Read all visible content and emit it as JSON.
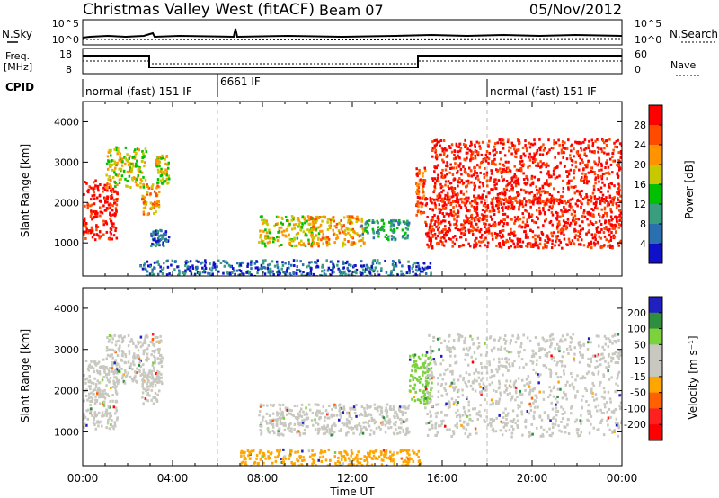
{
  "header": {
    "site": "Christmas Valley West (fitACF)",
    "beam": "Beam 07",
    "date": "05/Nov/2012"
  },
  "strips": {
    "nsky_label": "N.Sky",
    "nsearch_label": "N.Search",
    "noise_ticks_left": [
      "10^5",
      "10^0"
    ],
    "noise_ticks_right": [
      "10^5",
      "10^0"
    ],
    "freq_label_1": "Freq.",
    "freq_label_2": "[MHz]",
    "freq_ticks": [
      "18",
      "8"
    ],
    "nave_label": "Nave",
    "nave_ticks": [
      "60",
      "0"
    ],
    "cpid_label": "CPID",
    "cpid_segments": [
      "normal (fast) 151 IF",
      "6661 IF",
      "normal (fast) 151 IF"
    ]
  },
  "chart_data": [
    {
      "type": "heatmap",
      "panel": "power",
      "ylabel": "Slant Range [km]",
      "xlabel": "",
      "x_ticks": [
        "00:00",
        "04:00",
        "08:00",
        "12:00",
        "16:00",
        "20:00",
        "00:00"
      ],
      "y_ticks": [
        "1000",
        "2000",
        "3000",
        "4000"
      ],
      "xlim_hours": [
        0,
        24
      ],
      "ylim_km": [
        180,
        4500
      ],
      "colorbar_label": "Power [dB]",
      "colorbar_ticks": [
        "28",
        "24",
        "20",
        "16",
        "12",
        "8",
        "4"
      ],
      "colorbar_colors": [
        "#ff0000",
        "#ff4a00",
        "#ff9400",
        "#c8c800",
        "#00c000",
        "#3a9e7e",
        "#2a6fb0",
        "#1010c8"
      ],
      "regions": [
        {
          "x": [
            0.0,
            1.5
          ],
          "y": [
            1100,
            2600
          ],
          "level": 0
        },
        {
          "x": [
            1.0,
            2.8
          ],
          "y": [
            2400,
            3400
          ],
          "level": 3
        },
        {
          "x": [
            2.6,
            3.4
          ],
          "y": [
            1700,
            2500
          ],
          "level": 2
        },
        {
          "x": [
            3.2,
            3.8
          ],
          "y": [
            2500,
            3200
          ],
          "level": 3
        },
        {
          "x": [
            3.0,
            3.8
          ],
          "y": [
            950,
            1350
          ],
          "level": 6
        },
        {
          "x": [
            7.8,
            10.5
          ],
          "y": [
            950,
            1700
          ],
          "level": 3
        },
        {
          "x": [
            10.0,
            12.5
          ],
          "y": [
            950,
            1700
          ],
          "level": 2
        },
        {
          "x": [
            12.3,
            14.5
          ],
          "y": [
            1100,
            1600
          ],
          "level": 5
        },
        {
          "x": [
            2.5,
            15.5
          ],
          "y": [
            200,
            600
          ],
          "level": 6
        },
        {
          "x": [
            14.8,
            15.2
          ],
          "y": [
            1700,
            2900
          ],
          "level": 1
        },
        {
          "x": [
            15.2,
            24.0
          ],
          "y": [
            900,
            2200
          ],
          "level": 0
        },
        {
          "x": [
            15.5,
            24.0
          ],
          "y": [
            2000,
            3600
          ],
          "level": 0
        }
      ]
    },
    {
      "type": "heatmap",
      "panel": "velocity",
      "ylabel": "Slant Range [km]",
      "xlabel": "Time UT",
      "x_ticks": [
        "00:00",
        "04:00",
        "08:00",
        "12:00",
        "16:00",
        "20:00",
        "00:00"
      ],
      "y_ticks": [
        "1000",
        "2000",
        "3000",
        "4000"
      ],
      "xlim_hours": [
        0,
        24
      ],
      "ylim_km": [
        180,
        4500
      ],
      "colorbar_label": "Velocity [m s⁻¹]",
      "colorbar_ticks": [
        "200",
        "100",
        "50",
        "15",
        "-15",
        "-50",
        "-100",
        "-200"
      ],
      "colorbar_colors": [
        "#2020c0",
        "#2f8f3f",
        "#7bd23c",
        "#c8c8c0",
        "#c8c8c0",
        "#ffa500",
        "#ff6000",
        "#ff2020",
        "#ff0000"
      ],
      "regions": [
        {
          "x": [
            0.0,
            1.5
          ],
          "y": [
            1100,
            2800
          ],
          "level": "grey"
        },
        {
          "x": [
            1.0,
            3.5
          ],
          "y": [
            2200,
            3400
          ],
          "level": "grey"
        },
        {
          "x": [
            2.6,
            3.4
          ],
          "y": [
            1700,
            2500
          ],
          "level": "grey"
        },
        {
          "x": [
            7.8,
            14.5
          ],
          "y": [
            950,
            1700
          ],
          "level": "grey"
        },
        {
          "x": [
            7.0,
            15.0
          ],
          "y": [
            200,
            600
          ],
          "level": "orange"
        },
        {
          "x": [
            14.5,
            15.5
          ],
          "y": [
            1700,
            2900
          ],
          "level": "green"
        },
        {
          "x": [
            15.2,
            24.0
          ],
          "y": [
            900,
            3400
          ],
          "level": "grey"
        }
      ]
    }
  ]
}
